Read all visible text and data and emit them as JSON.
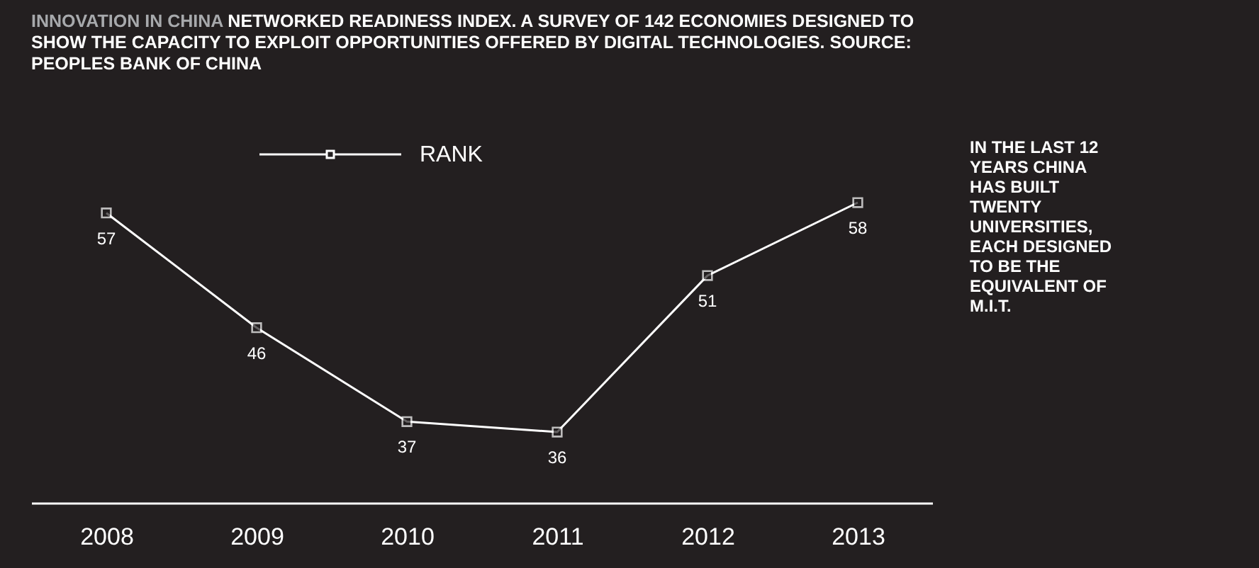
{
  "chart_data": {
    "type": "line",
    "title": "INNOVATION IN CHINA",
    "subtitle": "NETWORKED READINESS INDEX. A SURVEY OF 142 ECONOMIES DESIGNED TO SHOW THE CAPACITY TO EXPLOIT OPPORTUNITIES OFFERED BY DIGITAL TECHNOLOGIES. SOURCE: PEOPLES BANK OF CHINA",
    "categories": [
      "2008",
      "2009",
      "2010",
      "2011",
      "2012",
      "2013"
    ],
    "series": [
      {
        "name": "RANK",
        "color": "#ffffff",
        "values": [
          57,
          46,
          37,
          36,
          51,
          58
        ]
      }
    ],
    "data_labels": true,
    "marker": "square",
    "legend": "top",
    "grid": false,
    "annotations": [
      "IN THE LAST 12 YEARS CHINA HAS BUILT TWENTY UNIVERSITIES, EACH DESIGNED TO BE THE EQUIVALENT OF M.I.T."
    ]
  }
}
